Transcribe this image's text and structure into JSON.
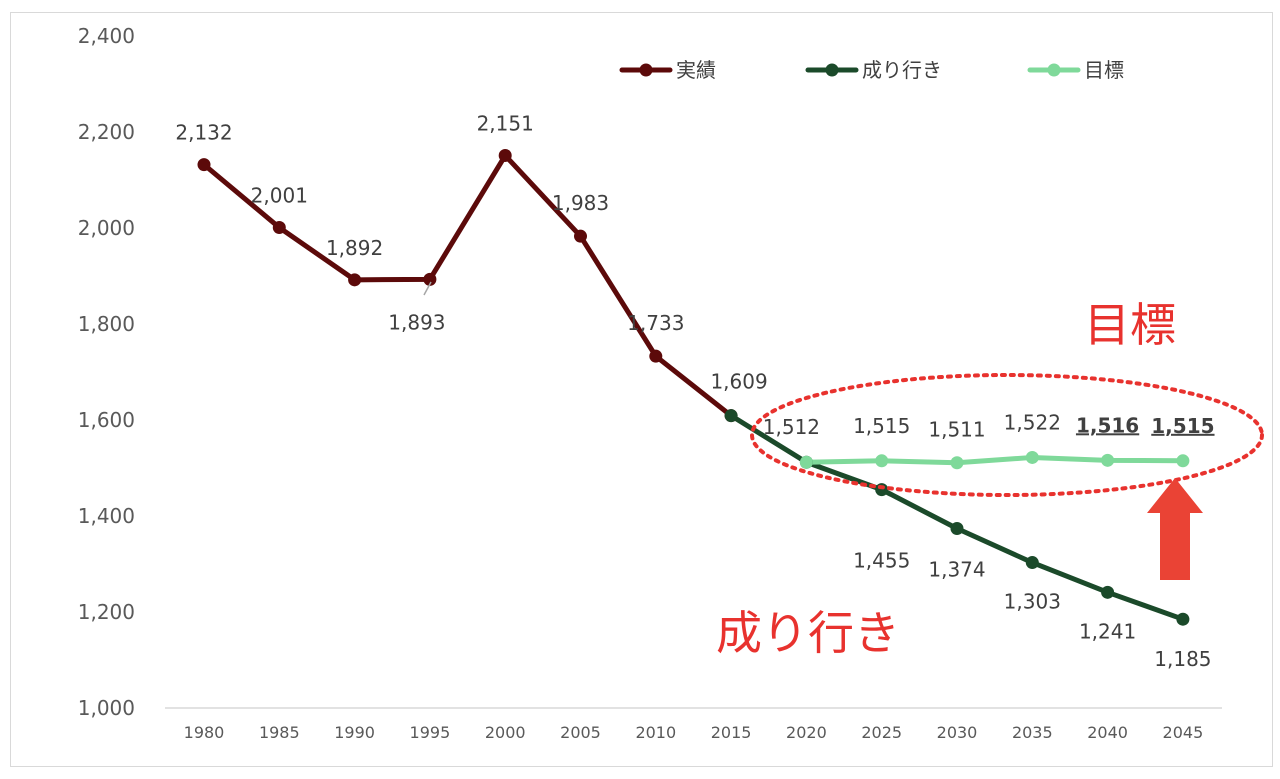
{
  "chart_data": {
    "type": "line",
    "categories": [
      "1980",
      "1985",
      "1990",
      "1995",
      "2000",
      "2005",
      "2010",
      "2015",
      "2020",
      "2025",
      "2030",
      "2035",
      "2040",
      "2045"
    ],
    "ylim": [
      1000,
      2400
    ],
    "yticks": [
      "1,000",
      "1,200",
      "1,400",
      "1,600",
      "1,800",
      "2,000",
      "2,200",
      "2,400"
    ],
    "ytick_values": [
      1000,
      1200,
      1400,
      1600,
      1800,
      2000,
      2200,
      2400
    ],
    "grid": false,
    "legend_position": "top-right",
    "series": [
      {
        "name": "実績",
        "color": "#5c0a0a",
        "values": [
          2132,
          2001,
          1892,
          1893,
          2151,
          1983,
          1733,
          1609,
          null,
          null,
          null,
          null,
          null,
          null
        ],
        "labels": [
          "2,132",
          "2,001",
          "1,892",
          "1,893",
          "2,151",
          "1,983",
          "1,733",
          "1,609",
          null,
          null,
          null,
          null,
          null,
          null
        ]
      },
      {
        "name": "成り行き",
        "color": "#1b4a2a",
        "values": [
          null,
          null,
          null,
          null,
          null,
          null,
          null,
          1609,
          1512,
          1455,
          1374,
          1303,
          1241,
          1185
        ],
        "labels": [
          null,
          null,
          null,
          null,
          null,
          null,
          null,
          null,
          "1,512",
          "1,455",
          "1,374",
          "1,303",
          "1,241",
          "1,185"
        ]
      },
      {
        "name": "目標",
        "color": "#7fd99a",
        "values": [
          null,
          null,
          null,
          null,
          null,
          null,
          null,
          null,
          1512,
          1515,
          1511,
          1522,
          1516,
          1515
        ],
        "labels": [
          null,
          null,
          null,
          null,
          null,
          null,
          null,
          null,
          null,
          "1,515",
          "1,511",
          "1,522",
          "1,516",
          "1,515"
        ]
      }
    ],
    "annotations": {
      "target_text": "目標",
      "trend_text": "成り行き",
      "annotation_color": "#e8322e"
    }
  }
}
